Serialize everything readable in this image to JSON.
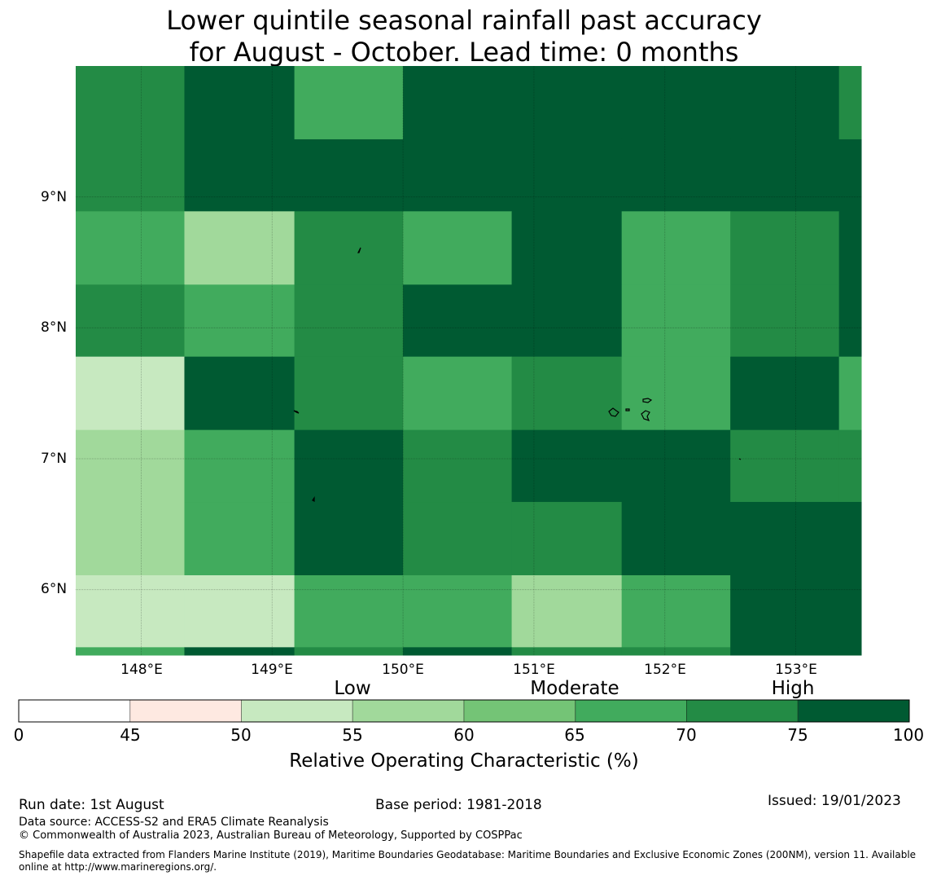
{
  "title": {
    "line1": "Lower quintile seasonal rainfall past accuracy",
    "line2": "for August - October. Lead time: 0 months"
  },
  "map": {
    "lon_range": [
      147.5,
      153.5
    ],
    "lat_range": [
      5.5,
      10.0
    ],
    "lat_ticks": [
      {
        "value": 9,
        "label": "9°N"
      },
      {
        "value": 8,
        "label": "8°N"
      },
      {
        "value": 7,
        "label": "7°N"
      },
      {
        "value": 6,
        "label": "6°N"
      }
    ],
    "lon_ticks": [
      {
        "value": 148,
        "label": "148°E"
      },
      {
        "value": 149,
        "label": "149°E"
      },
      {
        "value": 150,
        "label": "150°E"
      },
      {
        "value": 151,
        "label": "151°E"
      },
      {
        "value": 152,
        "label": "152°E"
      },
      {
        "value": 153,
        "label": "153°E"
      }
    ],
    "grid": {
      "lon_edges": [
        147.5,
        148.33,
        149.17,
        150.0,
        150.83,
        151.67,
        152.5,
        153.33,
        153.5
      ],
      "lat_edges": [
        10.0,
        9.44,
        8.89,
        8.33,
        7.78,
        7.22,
        6.67,
        6.11,
        5.56,
        5.5
      ],
      "category_index": [
        [
          6,
          7,
          5,
          7,
          7,
          7,
          7,
          6
        ],
        [
          6,
          7,
          7,
          7,
          7,
          7,
          7,
          7
        ],
        [
          5,
          3,
          6,
          5,
          7,
          5,
          6,
          7
        ],
        [
          6,
          5,
          6,
          7,
          7,
          5,
          6,
          7
        ],
        [
          2,
          7,
          6,
          5,
          6,
          5,
          7,
          5
        ],
        [
          3,
          5,
          7,
          6,
          7,
          7,
          6,
          6
        ],
        [
          3,
          5,
          7,
          6,
          6,
          7,
          7,
          7
        ],
        [
          2,
          2,
          5,
          5,
          3,
          5,
          7,
          7
        ],
        [
          5,
          7,
          6,
          7,
          6,
          6,
          7,
          7
        ]
      ]
    }
  },
  "colorbar": {
    "bounds": [
      0,
      45,
      50,
      55,
      60,
      65,
      70,
      75,
      100
    ],
    "colors": [
      "#ffffff",
      "#fee9e1",
      "#c7e9c0",
      "#a1d99b",
      "#74c476",
      "#41ab5d",
      "#238b45",
      "#005a32"
    ],
    "tick_labels": [
      "0",
      "45",
      "50",
      "55",
      "60",
      "65",
      "70",
      "75",
      "100"
    ],
    "categories": [
      {
        "label": "Low",
        "at": 52.5
      },
      {
        "label": "Moderate",
        "at": 65
      },
      {
        "label": "High",
        "at": 82.5
      }
    ],
    "title": "Relative Operating Characteristic (%)"
  },
  "footer": {
    "run_date": "Run date: 1st August",
    "base_period": "Base period: 1981-2018",
    "issued": "Issued: 19/01/2023",
    "data_source": "Data source: ACCESS-S2 and ERA5 Climate Reanalysis",
    "copyright": "© Commonwealth of Australia 2023, Australian Bureau of Meteorology, Supported by COSPPac",
    "shapefile": "Shapefile data extracted from Flanders Marine Institute (2019), Maritime Boundaries Geodatabase: Maritime Boundaries and Exclusive Economic Zones (200NM), version 11. Available online at http://www.marineregions.org/."
  }
}
